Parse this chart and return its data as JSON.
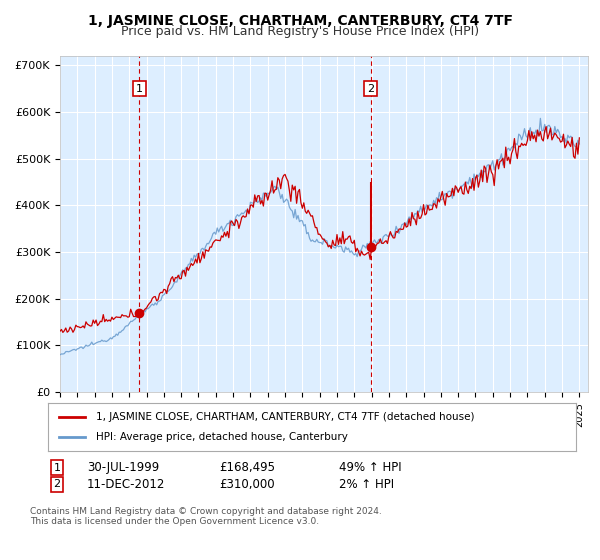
{
  "title": "1, JASMINE CLOSE, CHARTHAM, CANTERBURY, CT4 7TF",
  "subtitle": "Price paid vs. HM Land Registry's House Price Index (HPI)",
  "ylim": [
    0,
    700000
  ],
  "yticks": [
    0,
    100000,
    200000,
    300000,
    400000,
    500000,
    600000,
    700000
  ],
  "ytick_labels": [
    "£0",
    "£100K",
    "£200K",
    "£300K",
    "£400K",
    "£500K",
    "£600K",
    "£700K"
  ],
  "background_color": "#ffffff",
  "plot_background": "#ddeeff",
  "grid_color": "#ffffff",
  "line1_color": "#cc0000",
  "line2_color": "#6699cc",
  "sale1_date": 1999.58,
  "sale1_price": 168495,
  "sale2_date": 2012.95,
  "sale2_price": 310000,
  "legend_line1": "1, JASMINE CLOSE, CHARTHAM, CANTERBURY, CT4 7TF (detached house)",
  "legend_line2": "HPI: Average price, detached house, Canterbury",
  "footnote": "Contains HM Land Registry data © Crown copyright and database right 2024.\nThis data is licensed under the Open Government Licence v3.0.",
  "title_fontsize": 10,
  "subtitle_fontsize": 9
}
